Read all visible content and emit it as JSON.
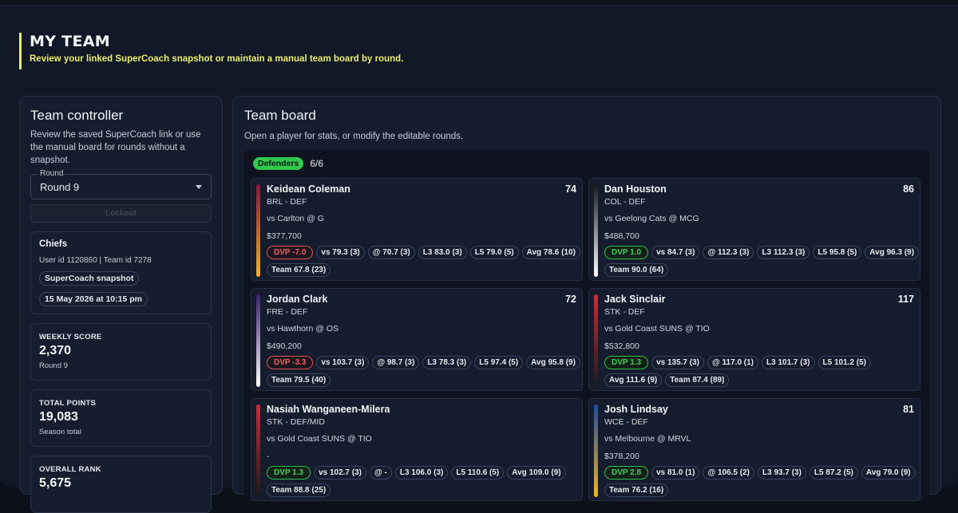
{
  "page": {
    "title": "My Team",
    "subtitle": "Review your linked SuperCoach snapshot or maintain a manual team board by round."
  },
  "controller": {
    "title": "Team controller",
    "description": "Review the saved SuperCoach link or use the manual board for rounds without a snapshot.",
    "round_label": "Round",
    "round_value": "Round 9",
    "lockout_label": "Lockout",
    "team": {
      "name": "Chiefs",
      "ids": "User id 1120860 | Team id 7278",
      "source_chip": "SuperCoach snapshot",
      "date_chip": "15 May 2026 at 10:15 pm"
    },
    "stats": [
      {
        "label": "WEEKLY SCORE",
        "value": "2,370",
        "sub": "Round 9"
      },
      {
        "label": "TOTAL POINTS",
        "value": "19,083",
        "sub": "Season total"
      },
      {
        "label": "OVERALL RANK",
        "value": "5,675",
        "sub": ""
      }
    ]
  },
  "board": {
    "title": "Team board",
    "description": "Open a player for stats, or modify the editable rounds.",
    "section": {
      "label": "Defenders",
      "count": "6/6"
    },
    "players": [
      {
        "name": "Keidean Coleman",
        "score": "74",
        "meta": "BRL - DEF",
        "opp": "vs Carlton @ G",
        "price": "$377,700",
        "dvp": "DVP -7.0",
        "dvp_sign": "neg",
        "accent": [
          "#8a1538",
          "#f0b323"
        ],
        "tags": [
          "vs 79.3 (3)",
          "@ 70.7 (3)",
          "L3 83.0 (3)",
          "L5 79.0 (5)",
          "Avg 78.6 (10)",
          "Team 67.8 (23)"
        ]
      },
      {
        "name": "Dan Houston",
        "score": "86",
        "meta": "COL - DEF",
        "opp": "vs Geelong Cats @ MCG",
        "price": "$488,700",
        "dvp": "DVP 1.0",
        "dvp_sign": "pos",
        "accent": [
          "#1a1a1a",
          "#ffffff"
        ],
        "tags": [
          "vs 84.7 (3)",
          "@ 112.3 (3)",
          "L3 112.3 (3)",
          "L5 95.8 (5)",
          "Avg 96.3 (9)",
          "Team 90.0 (64)"
        ]
      },
      {
        "name": "Jordan Clark",
        "score": "72",
        "meta": "FRE - DEF",
        "opp": "vs Hawthorn @ OS",
        "price": "$490,200",
        "dvp": "DVP -3.3",
        "dvp_sign": "neg",
        "accent": [
          "#3a1f6e",
          "#ffffff"
        ],
        "tags": [
          "vs 103.7 (3)",
          "@ 98.7 (3)",
          "L3 78.3 (3)",
          "L5 97.4 (5)",
          "Avg 95.8 (9)",
          "Team 79.5 (40)"
        ]
      },
      {
        "name": "Jack Sinclair",
        "score": "117",
        "meta": "STK - DEF",
        "opp": "vs Gold Coast SUNS @ TIO",
        "price": "$532,800",
        "dvp": "DVP 1.3",
        "dvp_sign": "pos",
        "accent": [
          "#d42a35",
          "#1a1a1a"
        ],
        "tags": [
          "vs 135.7 (3)",
          "@ 117.0 (1)",
          "L3 101.7 (3)",
          "L5 101.2 (5)",
          "Avg 111.6 (9)",
          "Team 87.4 (89)"
        ]
      },
      {
        "name": "Nasiah Wanganeen-Milera",
        "score": "",
        "meta": "STK - DEF/MID",
        "opp": "vs Gold Coast SUNS @ TIO",
        "price": "-",
        "dvp": "DVP 1.3",
        "dvp_sign": "pos",
        "accent": [
          "#d42a35",
          "#1a1a1a"
        ],
        "tags": [
          "vs 102.7 (3)",
          "@ -",
          "L3 106.0 (3)",
          "L5 110.6 (5)",
          "Avg 109.0 (9)",
          "Team 88.8 (25)"
        ]
      },
      {
        "name": "Josh Lindsay",
        "score": "81",
        "meta": "WCE - DEF",
        "opp": "vs Melbourne @ MRVL",
        "price": "$378,200",
        "dvp": "DVP 2.8",
        "dvp_sign": "pos",
        "accent": [
          "#1e4ea1",
          "#f2b320"
        ],
        "tags": [
          "vs 81.0 (1)",
          "@ 106.5 (2)",
          "L3 93.7 (3)",
          "L5 87.2 (5)",
          "Avg 79.0 (9)",
          "Team 76.2 (16)"
        ]
      }
    ]
  }
}
